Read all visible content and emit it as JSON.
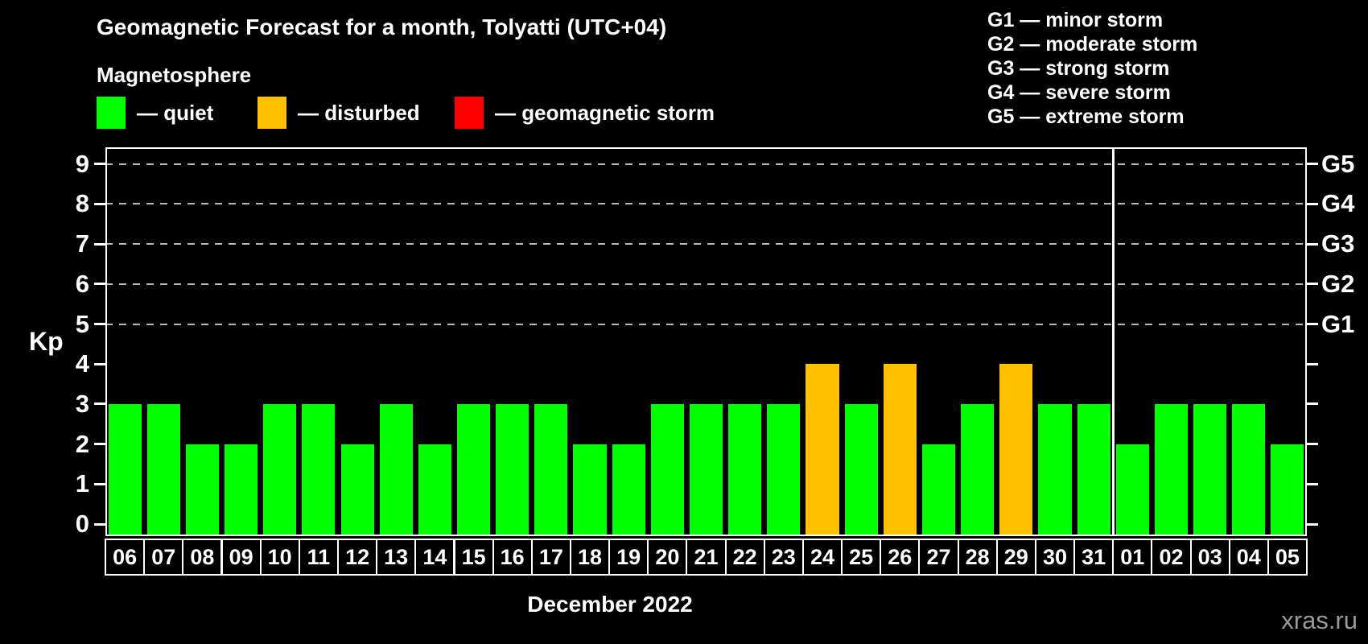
{
  "title": "Geomagnetic Forecast for a month, Tolyatti (UTC+04)",
  "subtitle": "Magnetosphere",
  "legend": {
    "items": [
      {
        "name": "quiet",
        "label": "— quiet",
        "color": "#00ff00"
      },
      {
        "name": "disturbed",
        "label": "— disturbed",
        "color": "#ffc000"
      },
      {
        "name": "geomagnetic-storm",
        "label": "— geomagnetic storm",
        "color": "#ff0000"
      }
    ]
  },
  "storm_legend": [
    "G1 — minor storm",
    "G2 — moderate storm",
    "G3 — strong storm",
    "G4 — severe storm",
    "G5 — extreme storm"
  ],
  "watermark": "xras.ru",
  "chart_data": {
    "type": "bar",
    "title": "Geomagnetic Forecast for a month, Tolyatti (UTC+04)",
    "xlabel": "December 2022",
    "ylabel": "Kp",
    "ylim": [
      0,
      9
    ],
    "yticks": [
      0,
      1,
      2,
      3,
      4,
      5,
      6,
      7,
      8,
      9
    ],
    "gridlines_at": [
      5,
      6,
      7,
      8,
      9
    ],
    "grid": "dashed",
    "legend_position": "top-left",
    "right_axis_labels": [
      {
        "kp": 5,
        "label": "G1"
      },
      {
        "kp": 6,
        "label": "G2"
      },
      {
        "kp": 7,
        "label": "G3"
      },
      {
        "kp": 8,
        "label": "G4"
      },
      {
        "kp": 9,
        "label": "G5"
      }
    ],
    "separator_after_day": "31",
    "status_colors": {
      "quiet": "#00ff00",
      "disturbed": "#ffc000",
      "storm": "#ff0000"
    },
    "days": [
      {
        "day": "06",
        "kp": 3,
        "status": "quiet"
      },
      {
        "day": "07",
        "kp": 3,
        "status": "quiet"
      },
      {
        "day": "08",
        "kp": 2,
        "status": "quiet"
      },
      {
        "day": "09",
        "kp": 2,
        "status": "quiet"
      },
      {
        "day": "10",
        "kp": 3,
        "status": "quiet"
      },
      {
        "day": "11",
        "kp": 3,
        "status": "quiet"
      },
      {
        "day": "12",
        "kp": 2,
        "status": "quiet"
      },
      {
        "day": "13",
        "kp": 3,
        "status": "quiet"
      },
      {
        "day": "14",
        "kp": 2,
        "status": "quiet"
      },
      {
        "day": "15",
        "kp": 3,
        "status": "quiet"
      },
      {
        "day": "16",
        "kp": 3,
        "status": "quiet"
      },
      {
        "day": "17",
        "kp": 3,
        "status": "quiet"
      },
      {
        "day": "18",
        "kp": 2,
        "status": "quiet"
      },
      {
        "day": "19",
        "kp": 2,
        "status": "quiet"
      },
      {
        "day": "20",
        "kp": 3,
        "status": "quiet"
      },
      {
        "day": "21",
        "kp": 3,
        "status": "quiet"
      },
      {
        "day": "22",
        "kp": 3,
        "status": "quiet"
      },
      {
        "day": "23",
        "kp": 3,
        "status": "quiet"
      },
      {
        "day": "24",
        "kp": 4,
        "status": "disturbed"
      },
      {
        "day": "25",
        "kp": 3,
        "status": "quiet"
      },
      {
        "day": "26",
        "kp": 4,
        "status": "disturbed"
      },
      {
        "day": "27",
        "kp": 2,
        "status": "quiet"
      },
      {
        "day": "28",
        "kp": 3,
        "status": "quiet"
      },
      {
        "day": "29",
        "kp": 4,
        "status": "disturbed"
      },
      {
        "day": "30",
        "kp": 3,
        "status": "quiet"
      },
      {
        "day": "31",
        "kp": 3,
        "status": "quiet"
      },
      {
        "day": "01",
        "kp": 2,
        "status": "quiet"
      },
      {
        "day": "02",
        "kp": 3,
        "status": "quiet"
      },
      {
        "day": "03",
        "kp": 3,
        "status": "quiet"
      },
      {
        "day": "04",
        "kp": 3,
        "status": "quiet"
      },
      {
        "day": "05",
        "kp": 2,
        "status": "quiet"
      }
    ]
  }
}
